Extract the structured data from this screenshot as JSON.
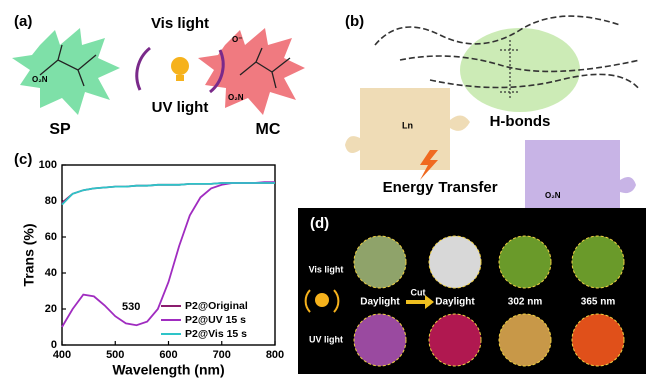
{
  "panel_a": {
    "label": "(a)",
    "top_light": "Vis light",
    "bottom_light": "UV light",
    "left_form": "SP",
    "right_form": "MC",
    "left_group": "O₂N",
    "right_group": "O₂N",
    "right_anion": "O⁻"
  },
  "panel_b": {
    "label": "(b)",
    "metal": "Ln",
    "bond_label": "H-bonds",
    "energy_word": "Energy",
    "transfer_word": "Transfer",
    "ring_group": "O₂N"
  },
  "chart_data": {
    "type": "line",
    "label": "(c)",
    "x_label": "Wavelength (nm)",
    "y_label": "Trans (%)",
    "x": [
      400,
      420,
      440,
      460,
      480,
      500,
      520,
      540,
      560,
      580,
      600,
      620,
      640,
      660,
      680,
      700,
      720,
      740,
      760,
      780,
      800
    ],
    "series": [
      {
        "name": "P2@Original",
        "color": "#8b1d6e",
        "values": [
          79,
          84,
          86,
          87,
          87.5,
          88,
          88,
          88.5,
          88.5,
          89,
          89,
          89,
          89.5,
          89.5,
          89.5,
          90,
          90,
          90,
          90,
          90,
          90
        ]
      },
      {
        "name": "P2@UV 15 s",
        "color": "#a02cc0",
        "values": [
          10,
          20,
          28,
          27,
          22,
          16,
          12,
          11,
          13,
          20,
          35,
          55,
          72,
          82,
          87,
          89,
          90,
          90,
          90,
          90.5,
          90.5
        ]
      },
      {
        "name": "P2@Vis 15 s",
        "color": "#2ec4c8",
        "values": [
          78,
          84,
          86,
          87,
          87.5,
          88,
          88,
          88.5,
          88.5,
          89,
          89,
          89,
          89.5,
          89.5,
          89.5,
          90,
          90,
          90,
          90,
          90,
          90
        ]
      }
    ],
    "annotation": {
      "text": "530",
      "x": 530,
      "y": 21
    },
    "xlim": [
      400,
      800
    ],
    "ylim": [
      0,
      100
    ],
    "xticks": [
      400,
      500,
      600,
      700,
      800
    ],
    "yticks": [
      0,
      20,
      40,
      60,
      80,
      100
    ],
    "legend": "lower right"
  },
  "panel_d": {
    "label": "(d)",
    "top_light": "Vis light",
    "bottom_light": "UV light",
    "captions": [
      "Daylight",
      "Daylight",
      "302 nm",
      "365 nm"
    ],
    "arrow_text": "Cut"
  }
}
